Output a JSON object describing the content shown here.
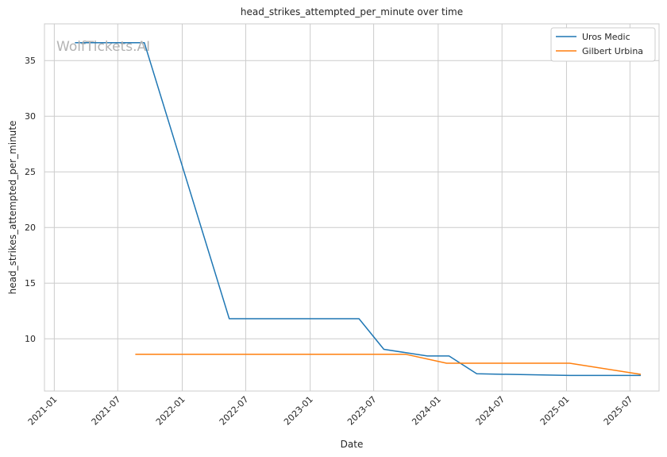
{
  "chart_data": {
    "type": "line",
    "title": "head_strikes_attempted_per_minute over time",
    "xlabel": "Date",
    "ylabel": "head_strikes_attempted_per_minute",
    "watermark": "WolfTickets.AI",
    "xlim": [
      "2020-12-04",
      "2025-09-22"
    ],
    "ylim": [
      5.3,
      38.3
    ],
    "x_ticks": [
      "2021-01",
      "2021-07",
      "2022-01",
      "2022-07",
      "2023-01",
      "2023-07",
      "2024-01",
      "2024-07",
      "2025-01",
      "2025-07"
    ],
    "y_ticks": [
      10,
      15,
      20,
      25,
      30,
      35
    ],
    "grid": true,
    "legend_position": "top-right",
    "series": [
      {
        "name": "Uros Medic",
        "color": "#1f77b4",
        "points": [
          {
            "x": "2021-03-01",
            "y": 36.6
          },
          {
            "x": "2021-09-15",
            "y": 36.6
          },
          {
            "x": "2022-05-15",
            "y": 11.8
          },
          {
            "x": "2023-05-20",
            "y": 11.8
          },
          {
            "x": "2023-07-30",
            "y": 9.05
          },
          {
            "x": "2023-12-01",
            "y": 8.45
          },
          {
            "x": "2024-02-01",
            "y": 8.45
          },
          {
            "x": "2024-04-20",
            "y": 6.85
          },
          {
            "x": "2025-01-10",
            "y": 6.7
          },
          {
            "x": "2025-08-01",
            "y": 6.7
          }
        ]
      },
      {
        "name": "Gilbert Urbina",
        "color": "#ff7f0e",
        "points": [
          {
            "x": "2021-08-20",
            "y": 8.6
          },
          {
            "x": "2023-10-01",
            "y": 8.6
          },
          {
            "x": "2024-01-25",
            "y": 7.8
          },
          {
            "x": "2025-01-10",
            "y": 7.8
          },
          {
            "x": "2025-08-01",
            "y": 6.8
          }
        ]
      }
    ]
  }
}
